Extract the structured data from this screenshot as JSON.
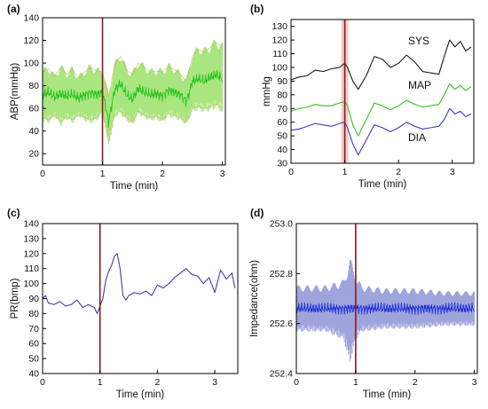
{
  "chart_data": [
    {
      "id": "a",
      "type": "line",
      "panel_label": "(a)",
      "xlabel": "Time (min)",
      "ylabel": "ABP(mmHg)",
      "xlim": [
        0,
        3.05
      ],
      "ylim": [
        10,
        140
      ],
      "xticks": [
        0,
        1,
        2,
        3
      ],
      "yticks": [
        20,
        40,
        60,
        80,
        100,
        120,
        140
      ],
      "vline_x": 1.0,
      "colors": {
        "band": "#9be26a",
        "band_edge": "#c8a24a",
        "mean": "#22c21d",
        "marker": "#8b1a1a"
      },
      "series": [
        {
          "kind": "band",
          "x": [
            0,
            0.1,
            0.2,
            0.3,
            0.4,
            0.5,
            0.6,
            0.7,
            0.8,
            0.9,
            1.0,
            1.05,
            1.1,
            1.15,
            1.2,
            1.3,
            1.4,
            1.5,
            1.6,
            1.7,
            1.8,
            1.9,
            2.0,
            2.1,
            2.2,
            2.3,
            2.4,
            2.5,
            2.6,
            2.7,
            2.8,
            2.9,
            3.0
          ],
          "upper": [
            92,
            95,
            88,
            96,
            90,
            94,
            87,
            92,
            96,
            93,
            92,
            82,
            70,
            84,
            98,
            106,
            94,
            90,
            100,
            96,
            92,
            93,
            92,
            97,
            94,
            90,
            84,
            106,
            112,
            110,
            114,
            118,
            114
          ],
          "lower": [
            52,
            50,
            55,
            48,
            53,
            50,
            55,
            52,
            50,
            52,
            58,
            45,
            30,
            42,
            55,
            58,
            52,
            48,
            58,
            54,
            52,
            53,
            50,
            56,
            54,
            52,
            48,
            60,
            62,
            60,
            62,
            64,
            60
          ]
        },
        {
          "kind": "mean",
          "x": [
            0,
            0.1,
            0.2,
            0.3,
            0.4,
            0.5,
            0.6,
            0.7,
            0.8,
            0.9,
            1.0,
            1.05,
            1.1,
            1.15,
            1.2,
            1.3,
            1.4,
            1.5,
            1.6,
            1.7,
            1.8,
            1.9,
            2.0,
            2.1,
            2.2,
            2.3,
            2.4,
            2.5,
            2.6,
            2.7,
            2.8,
            2.9,
            3.0
          ],
          "y": [
            72,
            74,
            70,
            73,
            71,
            72,
            69,
            72,
            74,
            72,
            74,
            62,
            48,
            62,
            76,
            82,
            72,
            68,
            78,
            74,
            72,
            73,
            71,
            76,
            74,
            72,
            66,
            84,
            86,
            84,
            88,
            90,
            86
          ]
        }
      ]
    },
    {
      "id": "b",
      "type": "line",
      "panel_label": "(b)",
      "xlabel": "Time (min)",
      "ylabel": "mmHg",
      "xlim": [
        0,
        3.4
      ],
      "ylim": [
        30,
        135
      ],
      "xticks": [
        0,
        1,
        2,
        3
      ],
      "yticks": [
        30,
        40,
        50,
        60,
        70,
        80,
        90,
        100,
        110,
        120,
        130
      ],
      "vline_x": 1.0,
      "colors": {
        "marker": "#8b1a1a",
        "highlight": "#f2a8a8"
      },
      "series": [
        {
          "name": "SYS",
          "color": "#1a1a1a",
          "x": [
            0,
            0.15,
            0.3,
            0.45,
            0.6,
            0.75,
            0.9,
            1.0,
            1.05,
            1.15,
            1.25,
            1.4,
            1.55,
            1.7,
            1.85,
            2.0,
            2.15,
            2.3,
            2.45,
            2.6,
            2.75,
            2.85,
            2.95,
            3.05,
            3.15,
            3.25,
            3.35
          ],
          "y": [
            91,
            93,
            94,
            98,
            97,
            99,
            100,
            103,
            100,
            90,
            84,
            94,
            108,
            106,
            100,
            103,
            109,
            104,
            97,
            96,
            95,
            108,
            120,
            115,
            119,
            112,
            115
          ]
        },
        {
          "name": "MAP",
          "color": "#33c21b",
          "x": [
            0,
            0.15,
            0.3,
            0.45,
            0.6,
            0.75,
            0.9,
            1.0,
            1.05,
            1.15,
            1.25,
            1.4,
            1.55,
            1.7,
            1.85,
            2.0,
            2.15,
            2.3,
            2.45,
            2.6,
            2.75,
            2.85,
            2.95,
            3.05,
            3.15,
            3.25,
            3.35
          ],
          "y": [
            68,
            70,
            71,
            73,
            72,
            72,
            74,
            75,
            72,
            58,
            50,
            62,
            74,
            72,
            69,
            72,
            76,
            73,
            71,
            72,
            73,
            80,
            88,
            84,
            87,
            83,
            86
          ]
        },
        {
          "name": "DIA",
          "color": "#3a3ac8",
          "x": [
            0,
            0.15,
            0.3,
            0.45,
            0.6,
            0.75,
            0.9,
            1.0,
            1.05,
            1.15,
            1.25,
            1.4,
            1.55,
            1.7,
            1.85,
            2.0,
            2.15,
            2.3,
            2.45,
            2.6,
            2.75,
            2.85,
            2.95,
            3.05,
            3.15,
            3.25,
            3.35
          ],
          "y": [
            54,
            55,
            57,
            59,
            58,
            57,
            59,
            60,
            56,
            44,
            36,
            47,
            58,
            56,
            53,
            56,
            60,
            57,
            55,
            56,
            57,
            62,
            70,
            66,
            68,
            64,
            66
          ]
        }
      ]
    },
    {
      "id": "c",
      "type": "line",
      "panel_label": "(c)",
      "xlabel": "Time (min)",
      "ylabel": "PR(bmp)",
      "xlim": [
        0,
        3.4
      ],
      "ylim": [
        40,
        140
      ],
      "xticks": [
        0,
        1,
        2,
        3
      ],
      "yticks": [
        40,
        50,
        60,
        70,
        80,
        90,
        100,
        110,
        120,
        130,
        140
      ],
      "vline_x": 1.0,
      "colors": {
        "marker": "#8b1a1a"
      },
      "series": [
        {
          "name": "PR",
          "color": "#4b3aa8",
          "x": [
            0,
            0.05,
            0.1,
            0.2,
            0.3,
            0.4,
            0.5,
            0.6,
            0.7,
            0.8,
            0.9,
            0.95,
            1.0,
            1.05,
            1.1,
            1.15,
            1.2,
            1.25,
            1.3,
            1.35,
            1.4,
            1.45,
            1.5,
            1.6,
            1.7,
            1.8,
            1.9,
            2.0,
            2.1,
            2.2,
            2.3,
            2.4,
            2.5,
            2.6,
            2.7,
            2.8,
            2.9,
            3.0,
            3.1,
            3.2,
            3.3,
            3.35
          ],
          "y": [
            90,
            92,
            87,
            86,
            88,
            85,
            86,
            89,
            84,
            86,
            84,
            80,
            85,
            90,
            102,
            108,
            112,
            118,
            120,
            110,
            92,
            89,
            92,
            94,
            93,
            95,
            92,
            99,
            97,
            100,
            104,
            107,
            110,
            106,
            105,
            100,
            104,
            94,
            109,
            103,
            107,
            97
          ]
        }
      ]
    },
    {
      "id": "d",
      "type": "line",
      "panel_label": "(d)",
      "xlabel": "Time (min)",
      "ylabel": "Impedance(ohm)",
      "xlim": [
        0,
        3.05
      ],
      "ylim": [
        252.4,
        253.0
      ],
      "xticks": [
        0,
        1,
        2,
        3
      ],
      "yticks": [
        252.4,
        252.6,
        252.8,
        253.0
      ],
      "vline_x": 1.0,
      "colors": {
        "band": "#8e94d6",
        "mean": "#1f2fd8",
        "marker": "#8b1a1a"
      },
      "series": [
        {
          "kind": "band",
          "x": [
            0,
            0.5,
            0.8,
            0.9,
            1.0,
            1.1,
            1.5,
            2.0,
            2.5,
            3.0
          ],
          "upper": [
            252.74,
            252.74,
            252.76,
            252.84,
            252.78,
            252.74,
            252.73,
            252.73,
            252.72,
            252.72
          ],
          "lower": [
            252.58,
            252.58,
            252.55,
            252.47,
            252.55,
            252.58,
            252.59,
            252.59,
            252.6,
            252.6
          ]
        },
        {
          "kind": "mean",
          "x": [
            0,
            0.5,
            0.8,
            0.9,
            1.0,
            1.1,
            1.5,
            2.0,
            2.5,
            3.0
          ],
          "y": [
            252.66,
            252.66,
            252.66,
            252.66,
            252.66,
            252.66,
            252.66,
            252.66,
            252.66,
            252.66
          ]
        }
      ]
    }
  ]
}
